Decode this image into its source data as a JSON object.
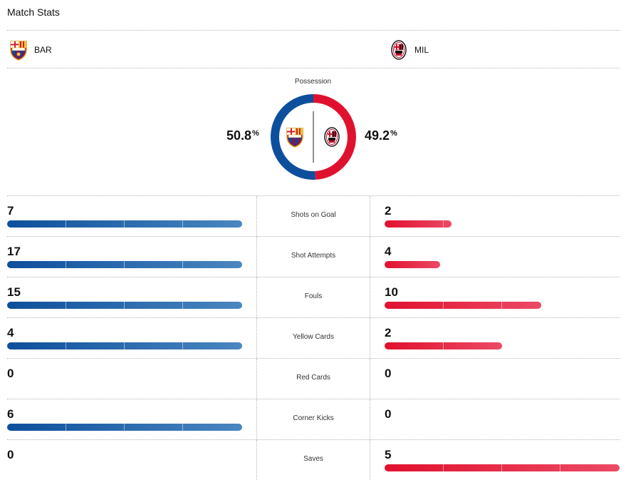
{
  "header": {
    "title": "Match Stats"
  },
  "teams": {
    "home": {
      "abbr": "BAR",
      "color": "#0d4f9c",
      "logo_icon": "fc-barcelona-crest-icon"
    },
    "away": {
      "abbr": "MIL",
      "color": "#e0112e",
      "logo_icon": "ac-milan-crest-icon"
    }
  },
  "possession": {
    "label": "Possession",
    "home_value": "50.8",
    "away_value": "49.2",
    "unit": "%",
    "home_fraction": 0.508,
    "away_fraction": 0.492
  },
  "stats": [
    {
      "label": "Shots on Goal",
      "home": "7",
      "away": "2",
      "home_fraction": 1.0,
      "away_fraction": 0.285
    },
    {
      "label": "Shot Attempts",
      "home": "17",
      "away": "4",
      "home_fraction": 1.0,
      "away_fraction": 0.235
    },
    {
      "label": "Fouls",
      "home": "15",
      "away": "10",
      "home_fraction": 1.0,
      "away_fraction": 0.667
    },
    {
      "label": "Yellow Cards",
      "home": "4",
      "away": "2",
      "home_fraction": 1.0,
      "away_fraction": 0.5
    },
    {
      "label": "Red Cards",
      "home": "0",
      "away": "0",
      "home_fraction": 0,
      "away_fraction": 0
    },
    {
      "label": "Corner Kicks",
      "home": "6",
      "away": "0",
      "home_fraction": 1.0,
      "away_fraction": 0
    },
    {
      "label": "Saves",
      "home": "0",
      "away": "5",
      "home_fraction": 0,
      "away_fraction": 1.0
    }
  ]
}
